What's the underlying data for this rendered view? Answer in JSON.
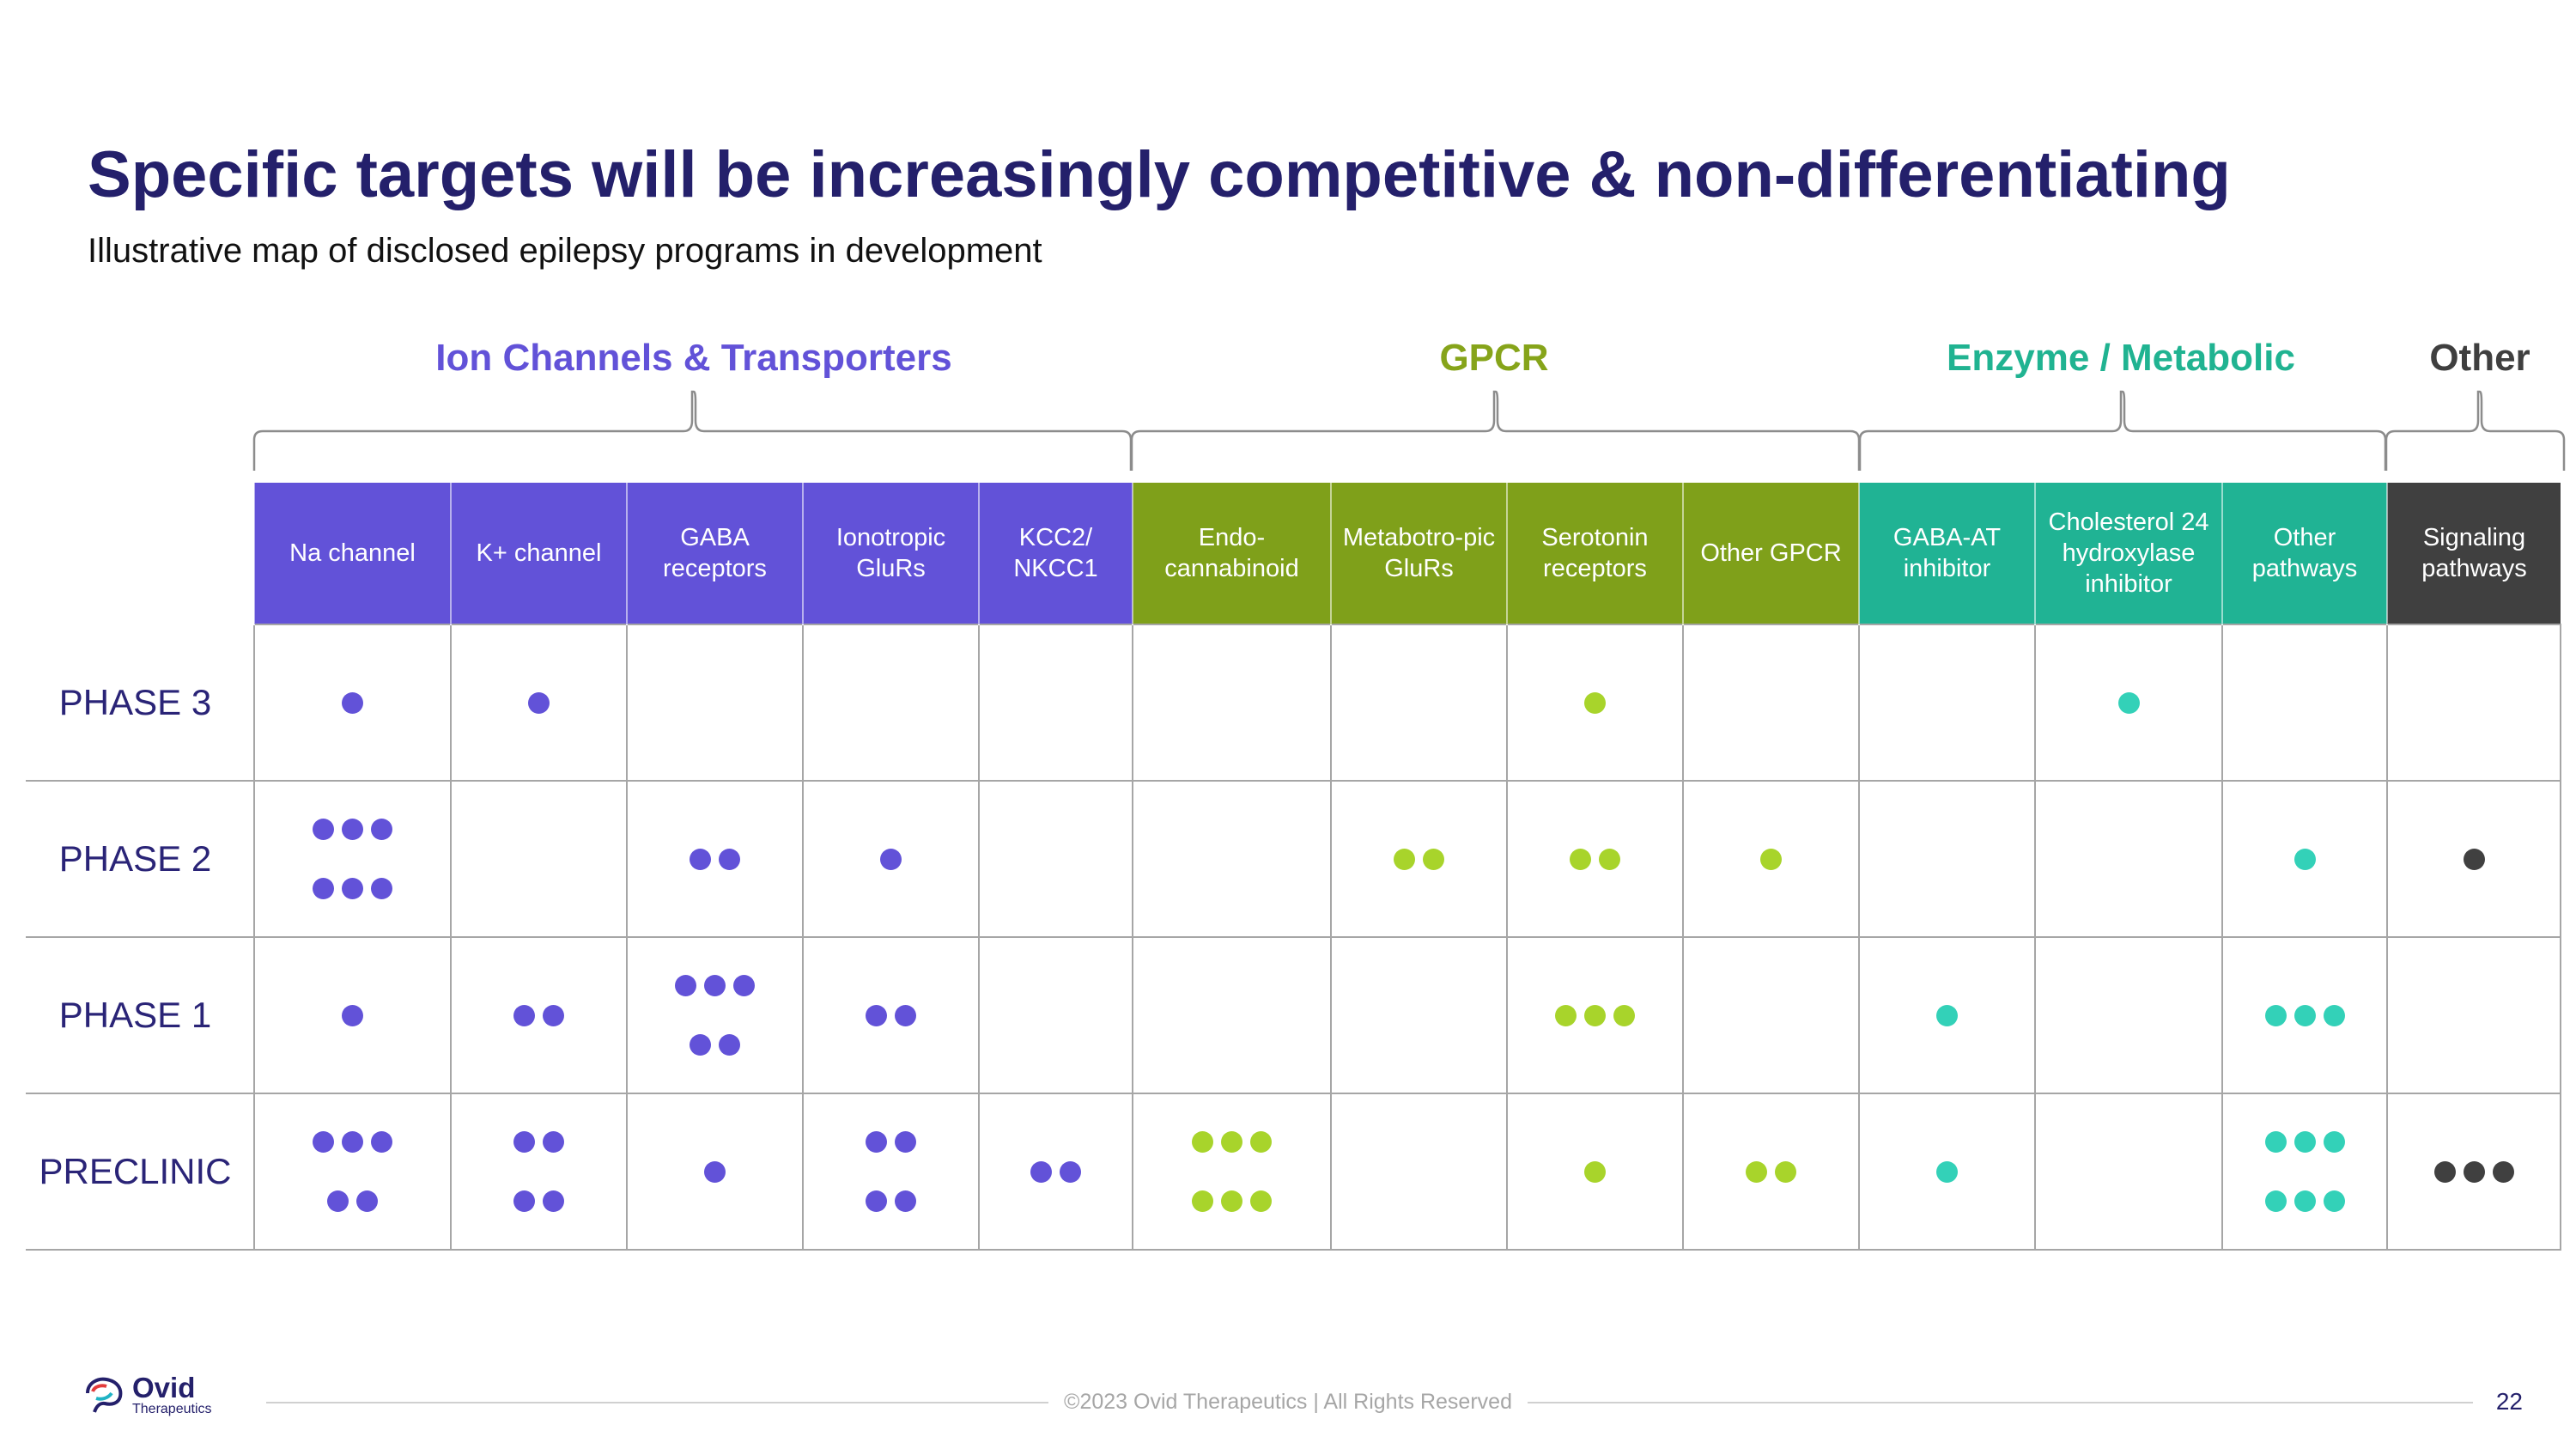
{
  "header": {
    "title": "Specific targets will be increasingly competitive & non-differentiating",
    "subtitle": "Illustrative map of disclosed epilepsy programs in development"
  },
  "groups": [
    {
      "label": "Ion Channels & Transporters",
      "color": "#6252d8"
    },
    {
      "label": "GPCR",
      "color": "#86a41a"
    },
    {
      "label": "Enzyme / Metabolic",
      "color": "#20b391"
    },
    {
      "label": "Other",
      "color": "#3f3f3f"
    }
  ],
  "columns": [
    {
      "label": "Na channel",
      "group": 0
    },
    {
      "label": "K+ channel",
      "group": 0
    },
    {
      "label": "GABA receptors",
      "group": 0
    },
    {
      "label": "Ionotropic GluRs",
      "group": 0
    },
    {
      "label": "KCC2/ NKCC1",
      "group": 0
    },
    {
      "label": "Endo-cannabinoid",
      "group": 1
    },
    {
      "label": "Metabotro-pic GluRs",
      "group": 1
    },
    {
      "label": "Serotonin receptors",
      "group": 1
    },
    {
      "label": "Other GPCR",
      "group": 1
    },
    {
      "label": "GABA-AT inhibitor",
      "group": 2
    },
    {
      "label": "Cholesterol 24 hydroxylase inhibitor",
      "group": 2
    },
    {
      "label": "Other pathways",
      "group": 2
    },
    {
      "label": "Signaling pathways",
      "group": 3
    }
  ],
  "header_colors": [
    "#6252d8",
    "#7fa01a",
    "#20b394",
    "#404040"
  ],
  "dot_colors": [
    "#6252d8",
    "#a8d42b",
    "#33d1b8",
    "#404040"
  ],
  "rows": [
    {
      "phase": "PHASE 3",
      "counts": [
        1,
        1,
        0,
        0,
        0,
        0,
        0,
        1,
        0,
        0,
        1,
        0,
        0
      ]
    },
    {
      "phase": "PHASE 2",
      "counts": [
        6,
        0,
        2,
        1,
        0,
        0,
        2,
        2,
        1,
        0,
        0,
        1,
        1
      ]
    },
    {
      "phase": "PHASE 1",
      "counts": [
        1,
        2,
        5,
        2,
        0,
        0,
        0,
        3,
        0,
        1,
        0,
        3,
        0
      ]
    },
    {
      "phase": "PRECLINIC",
      "counts": [
        5,
        4,
        1,
        4,
        2,
        6,
        0,
        1,
        2,
        1,
        0,
        6,
        3
      ]
    }
  ],
  "footer": {
    "copyright": "©2023 Ovid Therapeutics | All Rights Reserved",
    "page": "22",
    "logo_name": "Ovid",
    "logo_sub": "Therapeutics"
  }
}
